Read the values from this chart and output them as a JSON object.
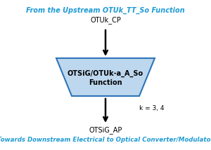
{
  "title_top": "From the Upstream OTUk_TT_So Function",
  "title_bottom": "Towards Downstream Electrical to Optical Converter/Modulator",
  "label_top": "OTUk_CP",
  "label_bottom": "OTSiG_AP",
  "box_line1": "OTSiG/OTUk-a_A_So",
  "box_line2": "Function",
  "k_label": "k = 3, 4",
  "title_color": "#1F9BD4",
  "box_fill_color": "#BDD7EE",
  "box_edge_color": "#2E75B6",
  "arrow_color": "#000000",
  "text_color": "#000000",
  "bg_color": "#FFFFFF",
  "fig_width": 3.0,
  "fig_height": 2.14,
  "dpi": 100
}
